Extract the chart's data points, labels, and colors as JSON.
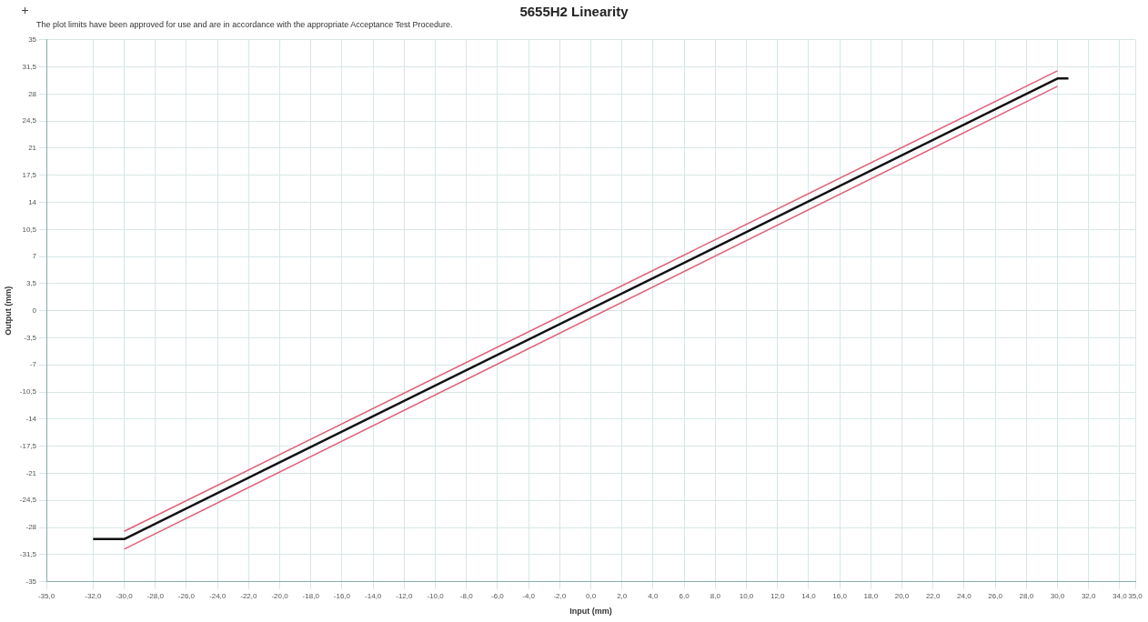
{
  "chart_data": {
    "type": "line",
    "title": "5655H2 Linearity",
    "subtitle": "The plot limits have been approved for use and are in accordance with the appropriate Acceptance Test Procedure.",
    "xlabel": "Input (mm)",
    "ylabel": "Output (mm)",
    "series": [
      {
        "color": "#e0607a",
        "x": [
          -30,
          30
        ],
        "values": [
          -28.5,
          31
        ]
      },
      {
        "color": "#e0607a",
        "x": [
          -30,
          30
        ],
        "values": [
          -30.8,
          29
        ]
      },
      {
        "color": "#111111",
        "x": [
          -32,
          -30,
          30,
          30.7
        ],
        "values": [
          -29.5,
          -29.5,
          30,
          30
        ]
      }
    ],
    "xlim": [
      -35,
      35
    ],
    "xticks": [
      {
        "value": -35,
        "label": "-35,0"
      },
      {
        "value": -32,
        "label": "-32,0"
      },
      {
        "value": -30,
        "label": "-30,0"
      },
      {
        "value": -28,
        "label": "-28,0"
      },
      {
        "value": -26,
        "label": "-26,0"
      },
      {
        "value": -24,
        "label": "-24,0"
      },
      {
        "value": -22,
        "label": "-22,0"
      },
      {
        "value": -20,
        "label": "-20,0"
      },
      {
        "value": -18,
        "label": "-18,0"
      },
      {
        "value": -16,
        "label": "-16,0"
      },
      {
        "value": -14,
        "label": "-14,0"
      },
      {
        "value": -12,
        "label": "-12,0"
      },
      {
        "value": -10,
        "label": "-10,0"
      },
      {
        "value": -8,
        "label": "-8,0"
      },
      {
        "value": -6,
        "label": "-6,0"
      },
      {
        "value": -4,
        "label": "-4,0"
      },
      {
        "value": -2,
        "label": "-2,0"
      },
      {
        "value": 0,
        "label": "0,0"
      },
      {
        "value": 2,
        "label": "2,0"
      },
      {
        "value": 4,
        "label": "4,0"
      },
      {
        "value": 6,
        "label": "6,0"
      },
      {
        "value": 8,
        "label": "8,0"
      },
      {
        "value": 10,
        "label": "10,0"
      },
      {
        "value": 12,
        "label": "12,0"
      },
      {
        "value": 14,
        "label": "14,0"
      },
      {
        "value": 16,
        "label": "16,0"
      },
      {
        "value": 18,
        "label": "18,0"
      },
      {
        "value": 20,
        "label": "20,0"
      },
      {
        "value": 22,
        "label": "22,0"
      },
      {
        "value": 24,
        "label": "24,0"
      },
      {
        "value": 26,
        "label": "26,0"
      },
      {
        "value": 28,
        "label": "28,0"
      },
      {
        "value": 30,
        "label": "30,0"
      },
      {
        "value": 32,
        "label": "32,0"
      },
      {
        "value": 34,
        "label": "34,0"
      },
      {
        "value": 35,
        "label": "35,0"
      }
    ],
    "ylim": [
      -35,
      35
    ],
    "yticks": [
      {
        "value": -35,
        "label": "-35"
      },
      {
        "value": -31.5,
        "label": "-31,5"
      },
      {
        "value": -28,
        "label": "-28"
      },
      {
        "value": -24.5,
        "label": "-24,5"
      },
      {
        "value": -21,
        "label": "-21"
      },
      {
        "value": -17.5,
        "label": "-17,5"
      },
      {
        "value": -14,
        "label": "-14"
      },
      {
        "value": -10.5,
        "label": "-10,5"
      },
      {
        "value": -7,
        "label": "-7"
      },
      {
        "value": -3.5,
        "label": "-3,5"
      },
      {
        "value": 0,
        "label": "0"
      },
      {
        "value": 3.5,
        "label": "3,5"
      },
      {
        "value": 7,
        "label": "7"
      },
      {
        "value": 10.5,
        "label": "10,5"
      },
      {
        "value": 14,
        "label": "14"
      },
      {
        "value": 17.5,
        "label": "17,5"
      },
      {
        "value": 21,
        "label": "21"
      },
      {
        "value": 24.5,
        "label": "24,5"
      },
      {
        "value": 28,
        "label": "28"
      },
      {
        "value": 31.5,
        "label": "31,5"
      },
      {
        "value": 35,
        "label": "35"
      }
    ],
    "grid": true,
    "legend": false,
    "marker": "none",
    "line_style": "solid"
  }
}
